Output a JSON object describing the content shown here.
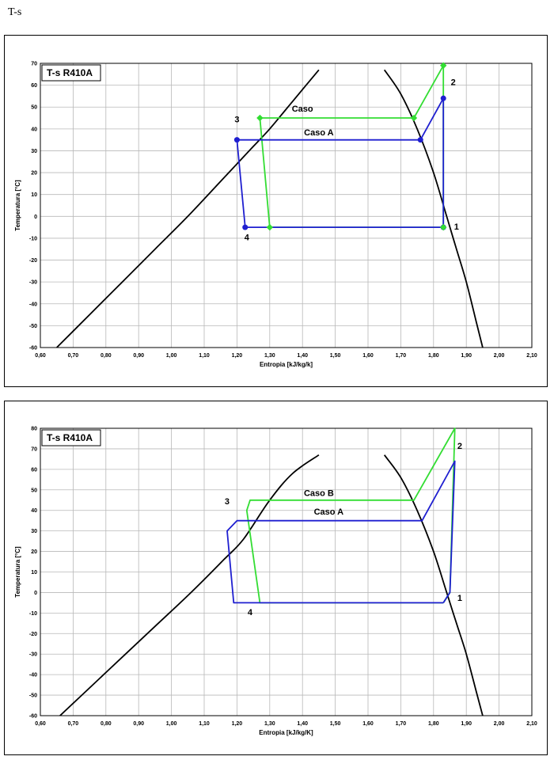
{
  "page_title": "T-s",
  "chart_data": [
    {
      "type": "line",
      "title": "T-s  R410A",
      "xlabel": "Entropia [kJ/kg/k]",
      "ylabel": "Temperatura [°C]",
      "xlim": [
        0.6,
        2.1
      ],
      "ylim": [
        -60,
        70
      ],
      "x_ticks": [
        "0,60",
        "0,70",
        "0,80",
        "0,90",
        "1,00",
        "1,10",
        "1,20",
        "1,30",
        "1,40",
        "1,50",
        "1,60",
        "1,70",
        "1,80",
        "1,90",
        "2,00",
        "2,10"
      ],
      "y_ticks": [
        "70",
        "60",
        "50",
        "40",
        "30",
        "20",
        "10",
        "0",
        "-10",
        "-20",
        "-30",
        "-40",
        "-50",
        "-60"
      ],
      "grid": true,
      "saturation_liquid": {
        "x": [
          0.65,
          0.75,
          0.85,
          0.95,
          1.05,
          1.15,
          1.25,
          1.3,
          1.35,
          1.4,
          1.45
        ],
        "y": [
          -60,
          -45,
          -30,
          -15,
          0,
          16,
          32,
          40,
          49,
          58,
          67
        ]
      },
      "saturation_vapor": {
        "x": [
          1.65,
          1.7,
          1.75,
          1.8,
          1.84,
          1.87,
          1.9,
          1.93,
          1.95
        ],
        "y": [
          67,
          56,
          40,
          20,
          0,
          -15,
          -30,
          -48,
          -60
        ]
      },
      "series": [
        {
          "name": "Caso A",
          "color": "#1f1fd0",
          "x": [
            1.83,
            1.83,
            1.76,
            1.2,
            1.225,
            1.83
          ],
          "y": [
            -5,
            54,
            35,
            35,
            -5,
            -5
          ]
        },
        {
          "name": "Caso",
          "color": "#33dd33",
          "x": [
            1.83,
            1.83,
            1.74,
            1.27,
            1.3,
            1.83
          ],
          "y": [
            -5,
            69,
            45,
            45,
            -5,
            -5
          ]
        }
      ],
      "annotations": [
        {
          "text": "1",
          "x": 1.87,
          "y": -6
        },
        {
          "text": "2",
          "x": 1.86,
          "y": 60
        },
        {
          "text": "3",
          "x": 1.2,
          "y": 43
        },
        {
          "text": "4",
          "x": 1.23,
          "y": -11
        },
        {
          "text": "Caso",
          "x": 1.4,
          "y": 48
        },
        {
          "text": "Caso A",
          "x": 1.45,
          "y": 37
        }
      ]
    },
    {
      "type": "line",
      "title": "T-s  R410A",
      "xlabel": "Entropia [kJ/kg/K]",
      "ylabel": "Temperatura [°C]",
      "xlim": [
        0.6,
        2.1
      ],
      "ylim": [
        -60,
        80
      ],
      "x_ticks": [
        "0,60",
        "0,70",
        "0,80",
        "0,90",
        "1,00",
        "1,10",
        "1,20",
        "1,30",
        "1,40",
        "1,50",
        "1,60",
        "1,70",
        "1,80",
        "1,90",
        "2,00",
        "2,10"
      ],
      "y_ticks": [
        "80",
        "70",
        "60",
        "50",
        "40",
        "30",
        "20",
        "10",
        "0",
        "-10",
        "-20",
        "-30",
        "-40",
        "-50",
        "-60"
      ],
      "grid": true,
      "saturation_liquid": {
        "x": [
          0.66,
          0.76,
          0.86,
          0.96,
          1.06,
          1.16,
          1.22,
          1.3,
          1.37,
          1.45
        ],
        "y": [
          -60,
          -45,
          -30,
          -15,
          0,
          16,
          26,
          45,
          58,
          67
        ]
      },
      "saturation_vapor": {
        "x": [
          1.65,
          1.7,
          1.75,
          1.8,
          1.84,
          1.87,
          1.9,
          1.93,
          1.95
        ],
        "y": [
          67,
          56,
          40,
          20,
          0,
          -15,
          -30,
          -48,
          -60
        ]
      },
      "series": [
        {
          "name": "Caso A",
          "color": "#1f1fd0",
          "x": [
            1.83,
            1.85,
            1.865,
            1.765,
            1.2,
            1.17,
            1.19,
            1.83
          ],
          "y": [
            -5,
            0,
            64,
            35,
            35,
            30,
            -5,
            -5
          ]
        },
        {
          "name": "Caso B",
          "color": "#33dd33",
          "x": [
            1.83,
            1.85,
            1.865,
            1.74,
            1.24,
            1.23,
            1.27,
            1.83
          ],
          "y": [
            -5,
            0,
            80,
            45,
            45,
            40,
            -5,
            -5
          ]
        }
      ],
      "annotations": [
        {
          "text": "1",
          "x": 1.88,
          "y": -4
        },
        {
          "text": "2",
          "x": 1.88,
          "y": 70
        },
        {
          "text": "3",
          "x": 1.17,
          "y": 43
        },
        {
          "text": "4",
          "x": 1.24,
          "y": -11
        },
        {
          "text": "Caso B",
          "x": 1.45,
          "y": 47
        },
        {
          "text": "Caso  A",
          "x": 1.48,
          "y": 38
        }
      ]
    }
  ]
}
